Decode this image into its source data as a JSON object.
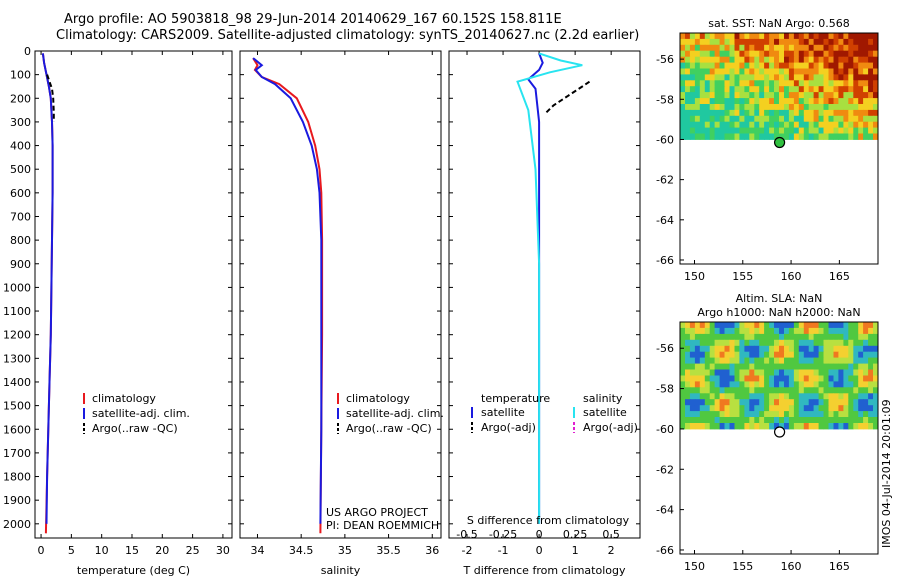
{
  "header": {
    "line1": "Argo profile: AO 5903818_98 29-Jun-2014 20140629_167 60.152S 158.811E",
    "line2": "Climatology: CARS2009. Satellite-adjusted climatology: synTS_20140627.nc (2.2d earlier)"
  },
  "colors": {
    "climatology": "#e8191e",
    "satellite": "#1a1adf",
    "argo": "#000000",
    "satellite_diff": "#28e4f0",
    "argo_adj_sal": "#e020d0"
  },
  "chart_data": [
    {
      "type": "line",
      "id": "temperature",
      "xlabel": "temperature (deg C)",
      "ylabel": "",
      "xlim": [
        -1,
        31.5
      ],
      "ylim": [
        2060,
        0
      ],
      "x_ticks": [
        0,
        5,
        10,
        15,
        20,
        25,
        30
      ],
      "y_ticks": [
        0,
        100,
        200,
        300,
        400,
        500,
        600,
        700,
        800,
        900,
        1000,
        1100,
        1200,
        1300,
        1400,
        1500,
        1600,
        1700,
        1800,
        1900,
        2000
      ],
      "legend": [
        "climatology",
        "satellite-adj. clim.",
        "Argo(..raw -QC)"
      ],
      "legend_position": "bottom-right",
      "series": [
        {
          "name": "climatology",
          "style": "solid",
          "x": [
            0.3,
            0.5,
            0.9,
            1.3,
            1.6,
            1.8,
            1.9,
            1.9,
            1.8,
            1.7,
            1.6,
            1.4,
            1.2,
            1.0,
            0.8
          ],
          "y": [
            10,
            50,
            100,
            150,
            200,
            300,
            400,
            600,
            800,
            1000,
            1200,
            1400,
            1600,
            1800,
            2040
          ]
        },
        {
          "name": "satellite-adj. clim.",
          "style": "solid",
          "x": [
            0.3,
            0.5,
            0.9,
            1.3,
            1.6,
            1.8,
            1.9,
            1.9,
            1.8,
            1.7,
            1.6,
            1.4,
            1.2,
            1.0,
            0.9
          ],
          "y": [
            10,
            50,
            100,
            150,
            200,
            300,
            400,
            600,
            800,
            1000,
            1200,
            1400,
            1600,
            1800,
            2000
          ]
        },
        {
          "name": "Argo(..raw -QC)",
          "style": "dashed",
          "x": [
            1.0,
            1.4,
            1.8,
            2.0,
            2.1,
            2.1
          ],
          "y": [
            100,
            130,
            160,
            200,
            260,
            300
          ]
        }
      ]
    },
    {
      "type": "line",
      "id": "salinity",
      "xlabel": "salinity",
      "ylabel": "",
      "xlim": [
        33.8,
        36.1
      ],
      "ylim": [
        2060,
        0
      ],
      "x_ticks": [
        34,
        34.5,
        35,
        35.5,
        36
      ],
      "x_tick_labels": [
        "34",
        "34.5",
        "35",
        "35.5",
        "36"
      ],
      "legend": [
        "climatology",
        "satellite-adj. clim.",
        "Argo(..raw -QC)"
      ],
      "legend_position": "bottom-right",
      "annotation": [
        "US ARGO PROJECT",
        "PI: DEAN ROEMMICH"
      ],
      "series": [
        {
          "name": "climatology",
          "style": "solid",
          "x": [
            33.95,
            34.0,
            33.97,
            34.05,
            34.25,
            34.45,
            34.58,
            34.66,
            34.71,
            34.73,
            34.74,
            34.74,
            34.73,
            34.72
          ],
          "y": [
            30,
            60,
            80,
            110,
            140,
            200,
            300,
            400,
            500,
            600,
            800,
            1200,
            1600,
            2040
          ]
        },
        {
          "name": "satellite-adj. clim.",
          "style": "solid",
          "x": [
            33.95,
            34.05,
            33.98,
            34.05,
            34.2,
            34.38,
            34.52,
            34.62,
            34.68,
            34.71,
            34.73,
            34.73,
            34.73,
            34.72
          ],
          "y": [
            30,
            60,
            80,
            110,
            140,
            200,
            300,
            400,
            500,
            600,
            800,
            1200,
            1600,
            2000
          ]
        }
      ]
    },
    {
      "type": "line",
      "id": "difference",
      "xlabel": "T difference from climatology",
      "title_inside": "S difference from climatology",
      "xlim": [
        -2.5,
        2.8
      ],
      "ylim": [
        2060,
        0
      ],
      "x_ticks": [
        -2,
        -1,
        0,
        1,
        2
      ],
      "x_tick_labels": [
        "-2",
        "-1",
        "0",
        "1",
        "2"
      ],
      "s_ticks": [
        -0.5,
        -0.25,
        0,
        0.25,
        0.5
      ],
      "s_tick_labels": [
        "-0.5",
        "-0.25",
        "0",
        "0.25",
        "0.5"
      ],
      "legend": {
        "temperature_header": "temperature",
        "salinity_header": "salinity",
        "items": [
          "satellite",
          "Argo(-adj)",
          "satellite",
          "Argo(-adj)"
        ]
      },
      "series": [
        {
          "name": "T satellite",
          "style": "solid",
          "x": [
            0.0,
            0.1,
            0.0,
            -0.3,
            -0.1,
            0.0,
            0.0,
            0.0,
            0.0,
            0.0
          ],
          "y": [
            10,
            50,
            80,
            120,
            160,
            300,
            600,
            1000,
            1500,
            2000
          ]
        },
        {
          "name": "S satellite",
          "style": "solid",
          "x": [
            0.0,
            0.6,
            1.2,
            0.3,
            -0.6,
            -0.3,
            -0.1,
            0.0,
            0.0,
            0.0
          ],
          "y": [
            10,
            40,
            60,
            90,
            130,
            250,
            500,
            900,
            1400,
            2000
          ]
        },
        {
          "name": "T Argo(-adj)",
          "style": "dashed",
          "x": [
            1.4,
            1.2,
            0.8,
            0.4,
            0.2
          ],
          "y": [
            130,
            150,
            190,
            230,
            260
          ]
        }
      ]
    },
    {
      "type": "heatmap",
      "id": "sst_map",
      "title": "sat. SST: NaN Argo: 0.568",
      "x_ticks": [
        150,
        155,
        160,
        165
      ],
      "y_tick_labels": [
        "-56",
        "-58",
        "-60",
        "-62",
        "-64",
        "-66"
      ],
      "xlim": [
        148.5,
        169
      ],
      "ylim": [
        -66.2,
        -54.7
      ],
      "data_extent_lat": [
        -60,
        -54.7
      ],
      "argo_position": {
        "lon": 158.811,
        "lat": -60.152
      }
    },
    {
      "type": "heatmap",
      "id": "sla_map",
      "title": "Altim. SLA: NaN",
      "subtitle": "Argo h1000: NaN h2000: NaN",
      "x_ticks": [
        150,
        155,
        160,
        165
      ],
      "y_tick_labels": [
        "-56",
        "-58",
        "-60",
        "-62",
        "-64",
        "-66"
      ],
      "xlim": [
        148.5,
        169
      ],
      "ylim": [
        -66.2,
        -54.7
      ],
      "data_extent_lat": [
        -60,
        -54.7
      ],
      "argo_position": {
        "lon": 158.811,
        "lat": -60.152
      }
    }
  ],
  "footer": {
    "stamp": "IMOS 04-Jul-2014 20:01:09"
  }
}
